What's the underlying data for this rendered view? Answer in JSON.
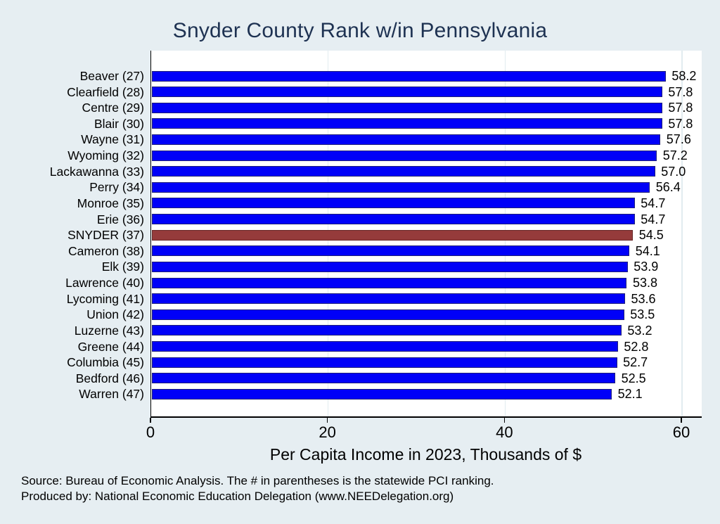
{
  "title": "Snyder County Rank w/in Pennsylvania",
  "chart_data": {
    "type": "bar",
    "orientation": "horizontal",
    "title": "Snyder County Rank w/in Pennsylvania",
    "categories": [
      "Beaver (27)",
      "Clearfield (28)",
      "Centre (29)",
      "Blair (30)",
      "Wayne (31)",
      "Wyoming (32)",
      "Lackawanna (33)",
      "Perry (34)",
      "Monroe (35)",
      "Erie (36)",
      "SNYDER (37)",
      "Cameron (38)",
      "Elk (39)",
      "Lawrence (40)",
      "Lycoming (41)",
      "Union (42)",
      "Luzerne (43)",
      "Greene (44)",
      "Columbia (45)",
      "Bedford (46)",
      "Warren (47)"
    ],
    "values": [
      58.2,
      57.8,
      57.8,
      57.8,
      57.6,
      57.2,
      57.0,
      56.4,
      54.7,
      54.7,
      54.5,
      54.1,
      53.9,
      53.8,
      53.6,
      53.5,
      53.2,
      52.8,
      52.7,
      52.5,
      52.1
    ],
    "highlight_index": 10,
    "highlight_category": "SNYDER (37)",
    "xlabel": "Per Capita Income in 2023, Thousands of $",
    "ylabel": "",
    "x_ticks": [
      0,
      20,
      40,
      60
    ],
    "xlim": [
      0,
      62.2
    ],
    "grid": true,
    "legend": "none",
    "value_label_decimals": 1
  },
  "colors": {
    "background": "#e6eef2",
    "plot_background": "#ffffff",
    "title": "#1e3252",
    "bar_fill": "#0000f8",
    "bar_border": "#20207a",
    "highlight_fill": "#953b3b",
    "highlight_border": "#672828",
    "grid_line": "#e2ecf0",
    "axis": "#000000",
    "text": "#000000"
  },
  "footer": {
    "line1": "Source: Bureau of Economic Analysis. The # in parentheses is the statewide PCI ranking.",
    "line2": "Produced by: National Economic Education Delegation (www.NEEDelegation.org)"
  }
}
